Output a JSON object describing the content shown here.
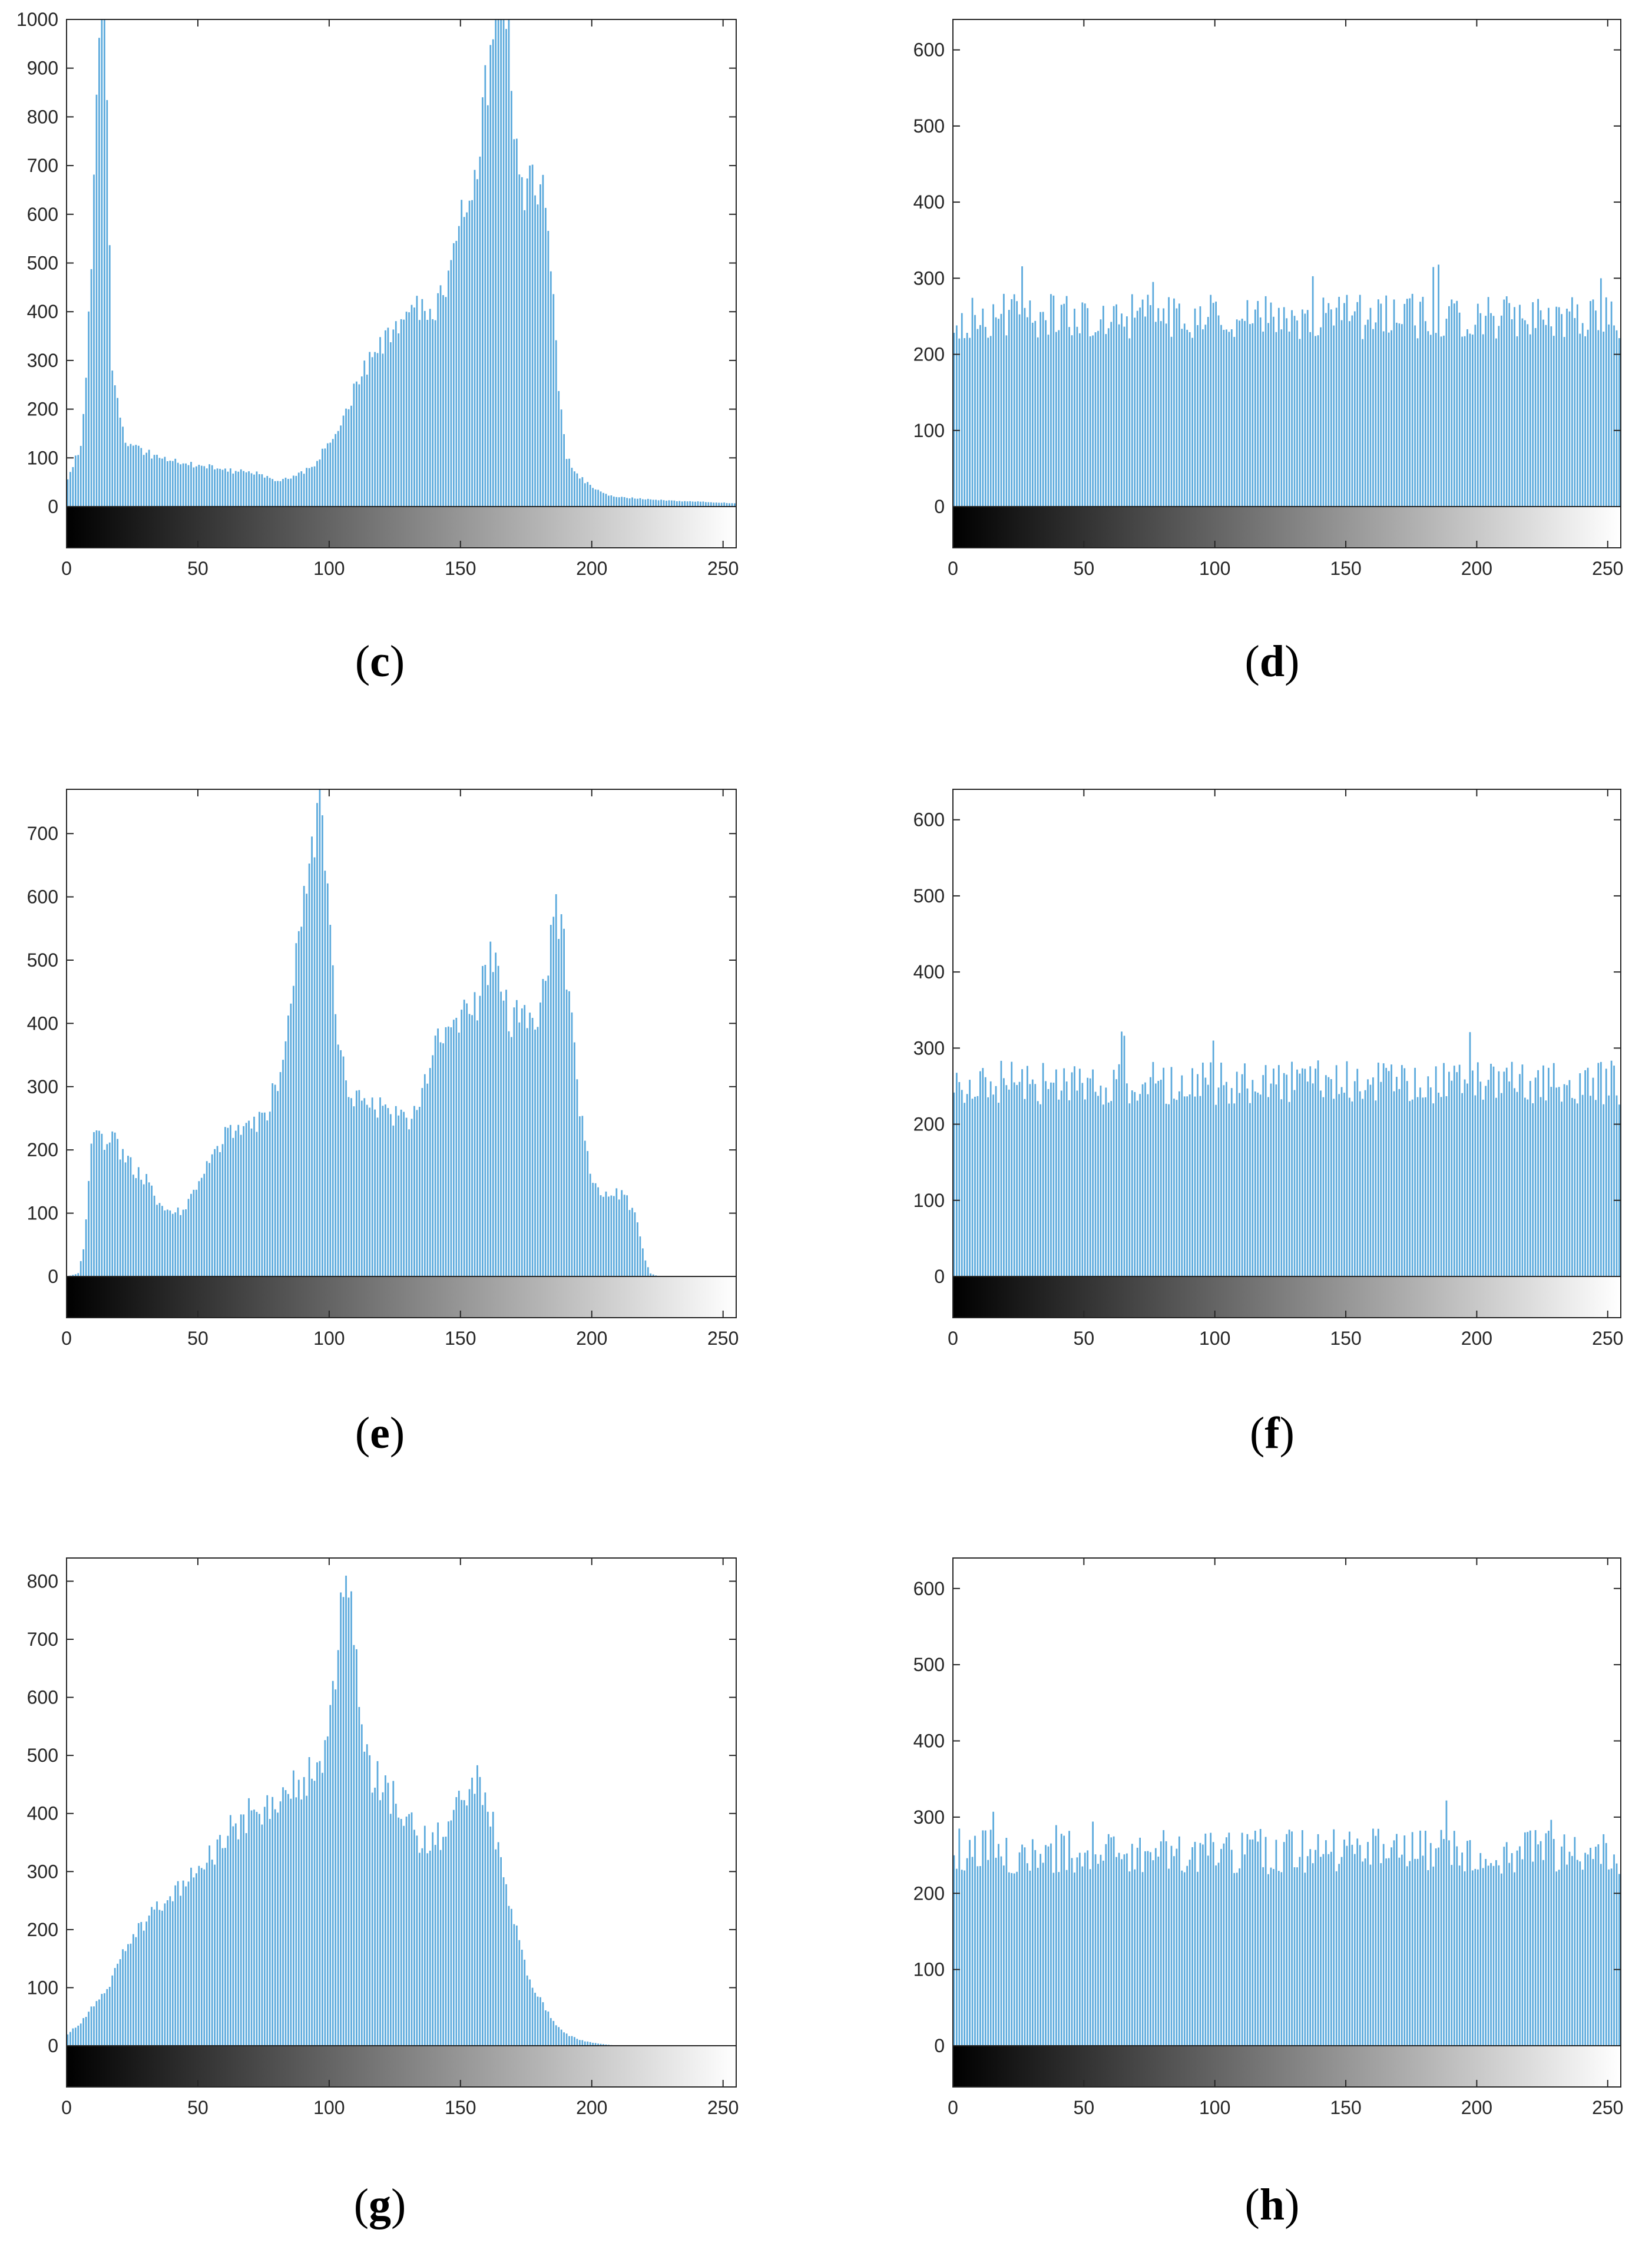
{
  "chart_data": [
    {
      "panel": "c",
      "type": "bar",
      "xlim": [
        0,
        255
      ],
      "ylim": [
        0,
        1000
      ],
      "xticks": [
        0,
        50,
        100,
        150,
        200,
        250
      ],
      "yticks": [
        0,
        100,
        200,
        300,
        400,
        500,
        600,
        700,
        800,
        900,
        1000
      ],
      "colorbar": "grayscale",
      "bar_color": "#5aa9dc",
      "anchors": [
        [
          0,
          60
        ],
        [
          3,
          100
        ],
        [
          5,
          120
        ],
        [
          7,
          280
        ],
        [
          8,
          400
        ],
        [
          9,
          520
        ],
        [
          10,
          730
        ],
        [
          11,
          850
        ],
        [
          12,
          1000
        ],
        [
          13,
          1150
        ],
        [
          14,
          1120
        ],
        [
          15,
          860
        ],
        [
          16,
          520
        ],
        [
          17,
          300
        ],
        [
          18,
          240
        ],
        [
          20,
          180
        ],
        [
          22,
          140
        ],
        [
          25,
          120
        ],
        [
          30,
          110
        ],
        [
          40,
          95
        ],
        [
          50,
          85
        ],
        [
          60,
          75
        ],
        [
          70,
          70
        ],
        [
          80,
          55
        ],
        [
          85,
          60
        ],
        [
          90,
          70
        ],
        [
          95,
          90
        ],
        [
          100,
          140
        ],
        [
          105,
          180
        ],
        [
          110,
          250
        ],
        [
          115,
          300
        ],
        [
          120,
          340
        ],
        [
          125,
          380
        ],
        [
          130,
          400
        ],
        [
          135,
          420
        ],
        [
          140,
          390
        ],
        [
          145,
          480
        ],
        [
          148,
          560
        ],
        [
          150,
          600
        ],
        [
          153,
          620
        ],
        [
          156,
          700
        ],
        [
          158,
          800
        ],
        [
          160,
          880
        ],
        [
          162,
          960
        ],
        [
          164,
          1080
        ],
        [
          166,
          1120
        ],
        [
          168,
          960
        ],
        [
          170,
          760
        ],
        [
          172,
          680
        ],
        [
          175,
          650
        ],
        [
          178,
          670
        ],
        [
          181,
          640
        ],
        [
          183,
          560
        ],
        [
          185,
          420
        ],
        [
          187,
          250
        ],
        [
          190,
          100
        ],
        [
          195,
          60
        ],
        [
          200,
          40
        ],
        [
          205,
          25
        ],
        [
          210,
          20
        ],
        [
          220,
          15
        ],
        [
          230,
          12
        ],
        [
          240,
          10
        ],
        [
          250,
          8
        ],
        [
          255,
          6
        ]
      ]
    },
    {
      "panel": "d",
      "type": "bar",
      "xlim": [
        0,
        255
      ],
      "ylim": [
        0,
        640
      ],
      "xticks": [
        0,
        50,
        100,
        150,
        200,
        250
      ],
      "yticks": [
        0,
        100,
        200,
        300,
        400,
        500,
        600
      ],
      "colorbar": "grayscale",
      "bar_color": "#5aa9dc",
      "anchors": [
        [
          0,
          250
        ],
        [
          255,
          250
        ]
      ]
    },
    {
      "panel": "e",
      "type": "bar",
      "xlim": [
        0,
        255
      ],
      "ylim": [
        0,
        770
      ],
      "xticks": [
        0,
        50,
        100,
        150,
        200,
        250
      ],
      "yticks": [
        0,
        100,
        200,
        300,
        400,
        500,
        600,
        700
      ],
      "colorbar": "grayscale",
      "bar_color": "#5aa9dc",
      "anchors": [
        [
          0,
          0
        ],
        [
          4,
          5
        ],
        [
          6,
          40
        ],
        [
          8,
          150
        ],
        [
          10,
          240
        ],
        [
          12,
          220
        ],
        [
          15,
          215
        ],
        [
          18,
          220
        ],
        [
          20,
          200
        ],
        [
          25,
          170
        ],
        [
          30,
          150
        ],
        [
          35,
          110
        ],
        [
          40,
          95
        ],
        [
          45,
          110
        ],
        [
          50,
          150
        ],
        [
          55,
          190
        ],
        [
          60,
          220
        ],
        [
          65,
          230
        ],
        [
          70,
          235
        ],
        [
          75,
          245
        ],
        [
          80,
          310
        ],
        [
          83,
          400
        ],
        [
          86,
          480
        ],
        [
          90,
          580
        ],
        [
          93,
          650
        ],
        [
          95,
          720
        ],
        [
          96,
          750
        ],
        [
          98,
          680
        ],
        [
          100,
          560
        ],
        [
          102,
          440
        ],
        [
          104,
          340
        ],
        [
          107,
          300
        ],
        [
          110,
          285
        ],
        [
          115,
          275
        ],
        [
          120,
          260
        ],
        [
          125,
          250
        ],
        [
          130,
          250
        ],
        [
          135,
          300
        ],
        [
          140,
          360
        ],
        [
          145,
          390
        ],
        [
          150,
          410
        ],
        [
          155,
          420
        ],
        [
          160,
          480
        ],
        [
          163,
          520
        ],
        [
          166,
          440
        ],
        [
          170,
          400
        ],
        [
          173,
          450
        ],
        [
          176,
          400
        ],
        [
          180,
          420
        ],
        [
          183,
          500
        ],
        [
          186,
          560
        ],
        [
          189,
          520
        ],
        [
          192,
          420
        ],
        [
          195,
          260
        ],
        [
          198,
          190
        ],
        [
          200,
          150
        ],
        [
          205,
          130
        ],
        [
          210,
          130
        ],
        [
          213,
          120
        ],
        [
          216,
          100
        ],
        [
          218,
          60
        ],
        [
          220,
          25
        ],
        [
          222,
          5
        ],
        [
          225,
          0
        ],
        [
          255,
          0
        ]
      ]
    },
    {
      "panel": "f",
      "type": "bar",
      "xlim": [
        0,
        255
      ],
      "ylim": [
        0,
        640
      ],
      "xticks": [
        0,
        50,
        100,
        150,
        200,
        250
      ],
      "yticks": [
        0,
        100,
        200,
        300,
        400,
        500,
        600
      ],
      "colorbar": "grayscale",
      "bar_color": "#5aa9dc",
      "anchors": [
        [
          0,
          255
        ],
        [
          255,
          255
        ]
      ]
    },
    {
      "panel": "g",
      "type": "bar",
      "xlim": [
        0,
        255
      ],
      "ylim": [
        0,
        840
      ],
      "xticks": [
        0,
        50,
        100,
        150,
        200,
        250
      ],
      "yticks": [
        0,
        100,
        200,
        300,
        400,
        500,
        600,
        700,
        800
      ],
      "colorbar": "grayscale",
      "bar_color": "#5aa9dc",
      "anchors": [
        [
          0,
          20
        ],
        [
          5,
          40
        ],
        [
          10,
          70
        ],
        [
          15,
          100
        ],
        [
          20,
          150
        ],
        [
          25,
          190
        ],
        [
          30,
          215
        ],
        [
          35,
          240
        ],
        [
          40,
          265
        ],
        [
          45,
          290
        ],
        [
          50,
          310
        ],
        [
          55,
          330
        ],
        [
          60,
          360
        ],
        [
          65,
          380
        ],
        [
          70,
          400
        ],
        [
          75,
          410
        ],
        [
          80,
          430
        ],
        [
          85,
          450
        ],
        [
          90,
          460
        ],
        [
          95,
          470
        ],
        [
          98,
          500
        ],
        [
          100,
          560
        ],
        [
          102,
          660
        ],
        [
          104,
          800
        ],
        [
          106,
          860
        ],
        [
          108,
          800
        ],
        [
          110,
          660
        ],
        [
          112,
          560
        ],
        [
          115,
          480
        ],
        [
          120,
          440
        ],
        [
          125,
          420
        ],
        [
          130,
          390
        ],
        [
          135,
          350
        ],
        [
          140,
          355
        ],
        [
          145,
          380
        ],
        [
          150,
          420
        ],
        [
          154,
          460
        ],
        [
          158,
          440
        ],
        [
          162,
          380
        ],
        [
          165,
          330
        ],
        [
          168,
          250
        ],
        [
          172,
          180
        ],
        [
          175,
          120
        ],
        [
          180,
          80
        ],
        [
          185,
          40
        ],
        [
          190,
          20
        ],
        [
          195,
          10
        ],
        [
          200,
          5
        ],
        [
          205,
          2
        ],
        [
          210,
          0
        ],
        [
          255,
          0
        ]
      ]
    },
    {
      "panel": "h",
      "type": "bar",
      "xlim": [
        0,
        255
      ],
      "ylim": [
        0,
        640
      ],
      "xticks": [
        0,
        50,
        100,
        150,
        200,
        250
      ],
      "yticks": [
        0,
        100,
        200,
        300,
        400,
        500,
        600
      ],
      "colorbar": "grayscale",
      "bar_color": "#5aa9dc",
      "anchors": [
        [
          0,
          255
        ],
        [
          255,
          255
        ]
      ]
    }
  ],
  "labels": {
    "c": {
      "open": "(",
      "letter": "c",
      "close": ")"
    },
    "d": {
      "open": "(",
      "letter": "d",
      "close": ")"
    },
    "e": {
      "open": "(",
      "letter": "e",
      "close": ")"
    },
    "f": {
      "open": "(",
      "letter": "f",
      "close": ")"
    },
    "g": {
      "open": "(",
      "letter": "g",
      "close": ")"
    },
    "h": {
      "open": "(",
      "letter": "h",
      "close": ")"
    }
  }
}
